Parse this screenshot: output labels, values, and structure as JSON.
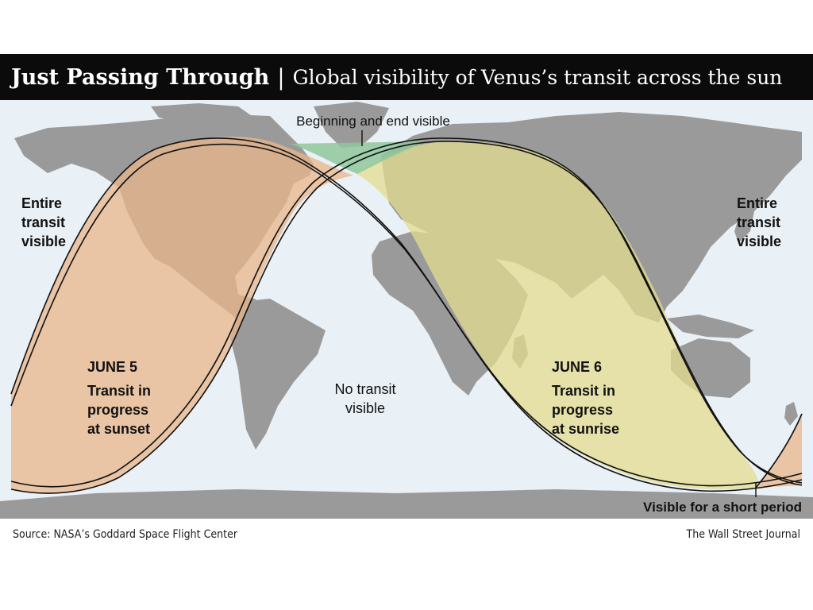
{
  "header": {
    "title": "Just Passing Through",
    "separator": "|",
    "subtitle": "Global visibility of Venus’s transit across the sun"
  },
  "map": {
    "labels": {
      "beginning_end": "Beginning and end visible",
      "entire_left": [
        "Entire",
        "transit",
        "visible"
      ],
      "entire_right": [
        "Entire",
        "transit",
        "visible"
      ],
      "june5_date": "JUNE 5",
      "june5_desc": [
        "Transit in",
        "progress",
        "at sunset"
      ],
      "no_transit": [
        "No transit",
        "visible"
      ],
      "june6_date": "JUNE 6",
      "june6_desc": [
        "Transit in",
        "progress",
        "at sunrise"
      ],
      "short_period": "Visible for a short period"
    },
    "colors": {
      "ocean": "#e9f0f6",
      "land": "#9a9a9a",
      "june5_zone": "#e8b58a",
      "june6_zone": "#e3dc8e",
      "both_zone": "#8fc79b",
      "boundary": "#111111"
    }
  },
  "footer": {
    "source": "Source: NASA’s Goddard Space Flight Center",
    "credit": "The Wall Street Journal"
  }
}
